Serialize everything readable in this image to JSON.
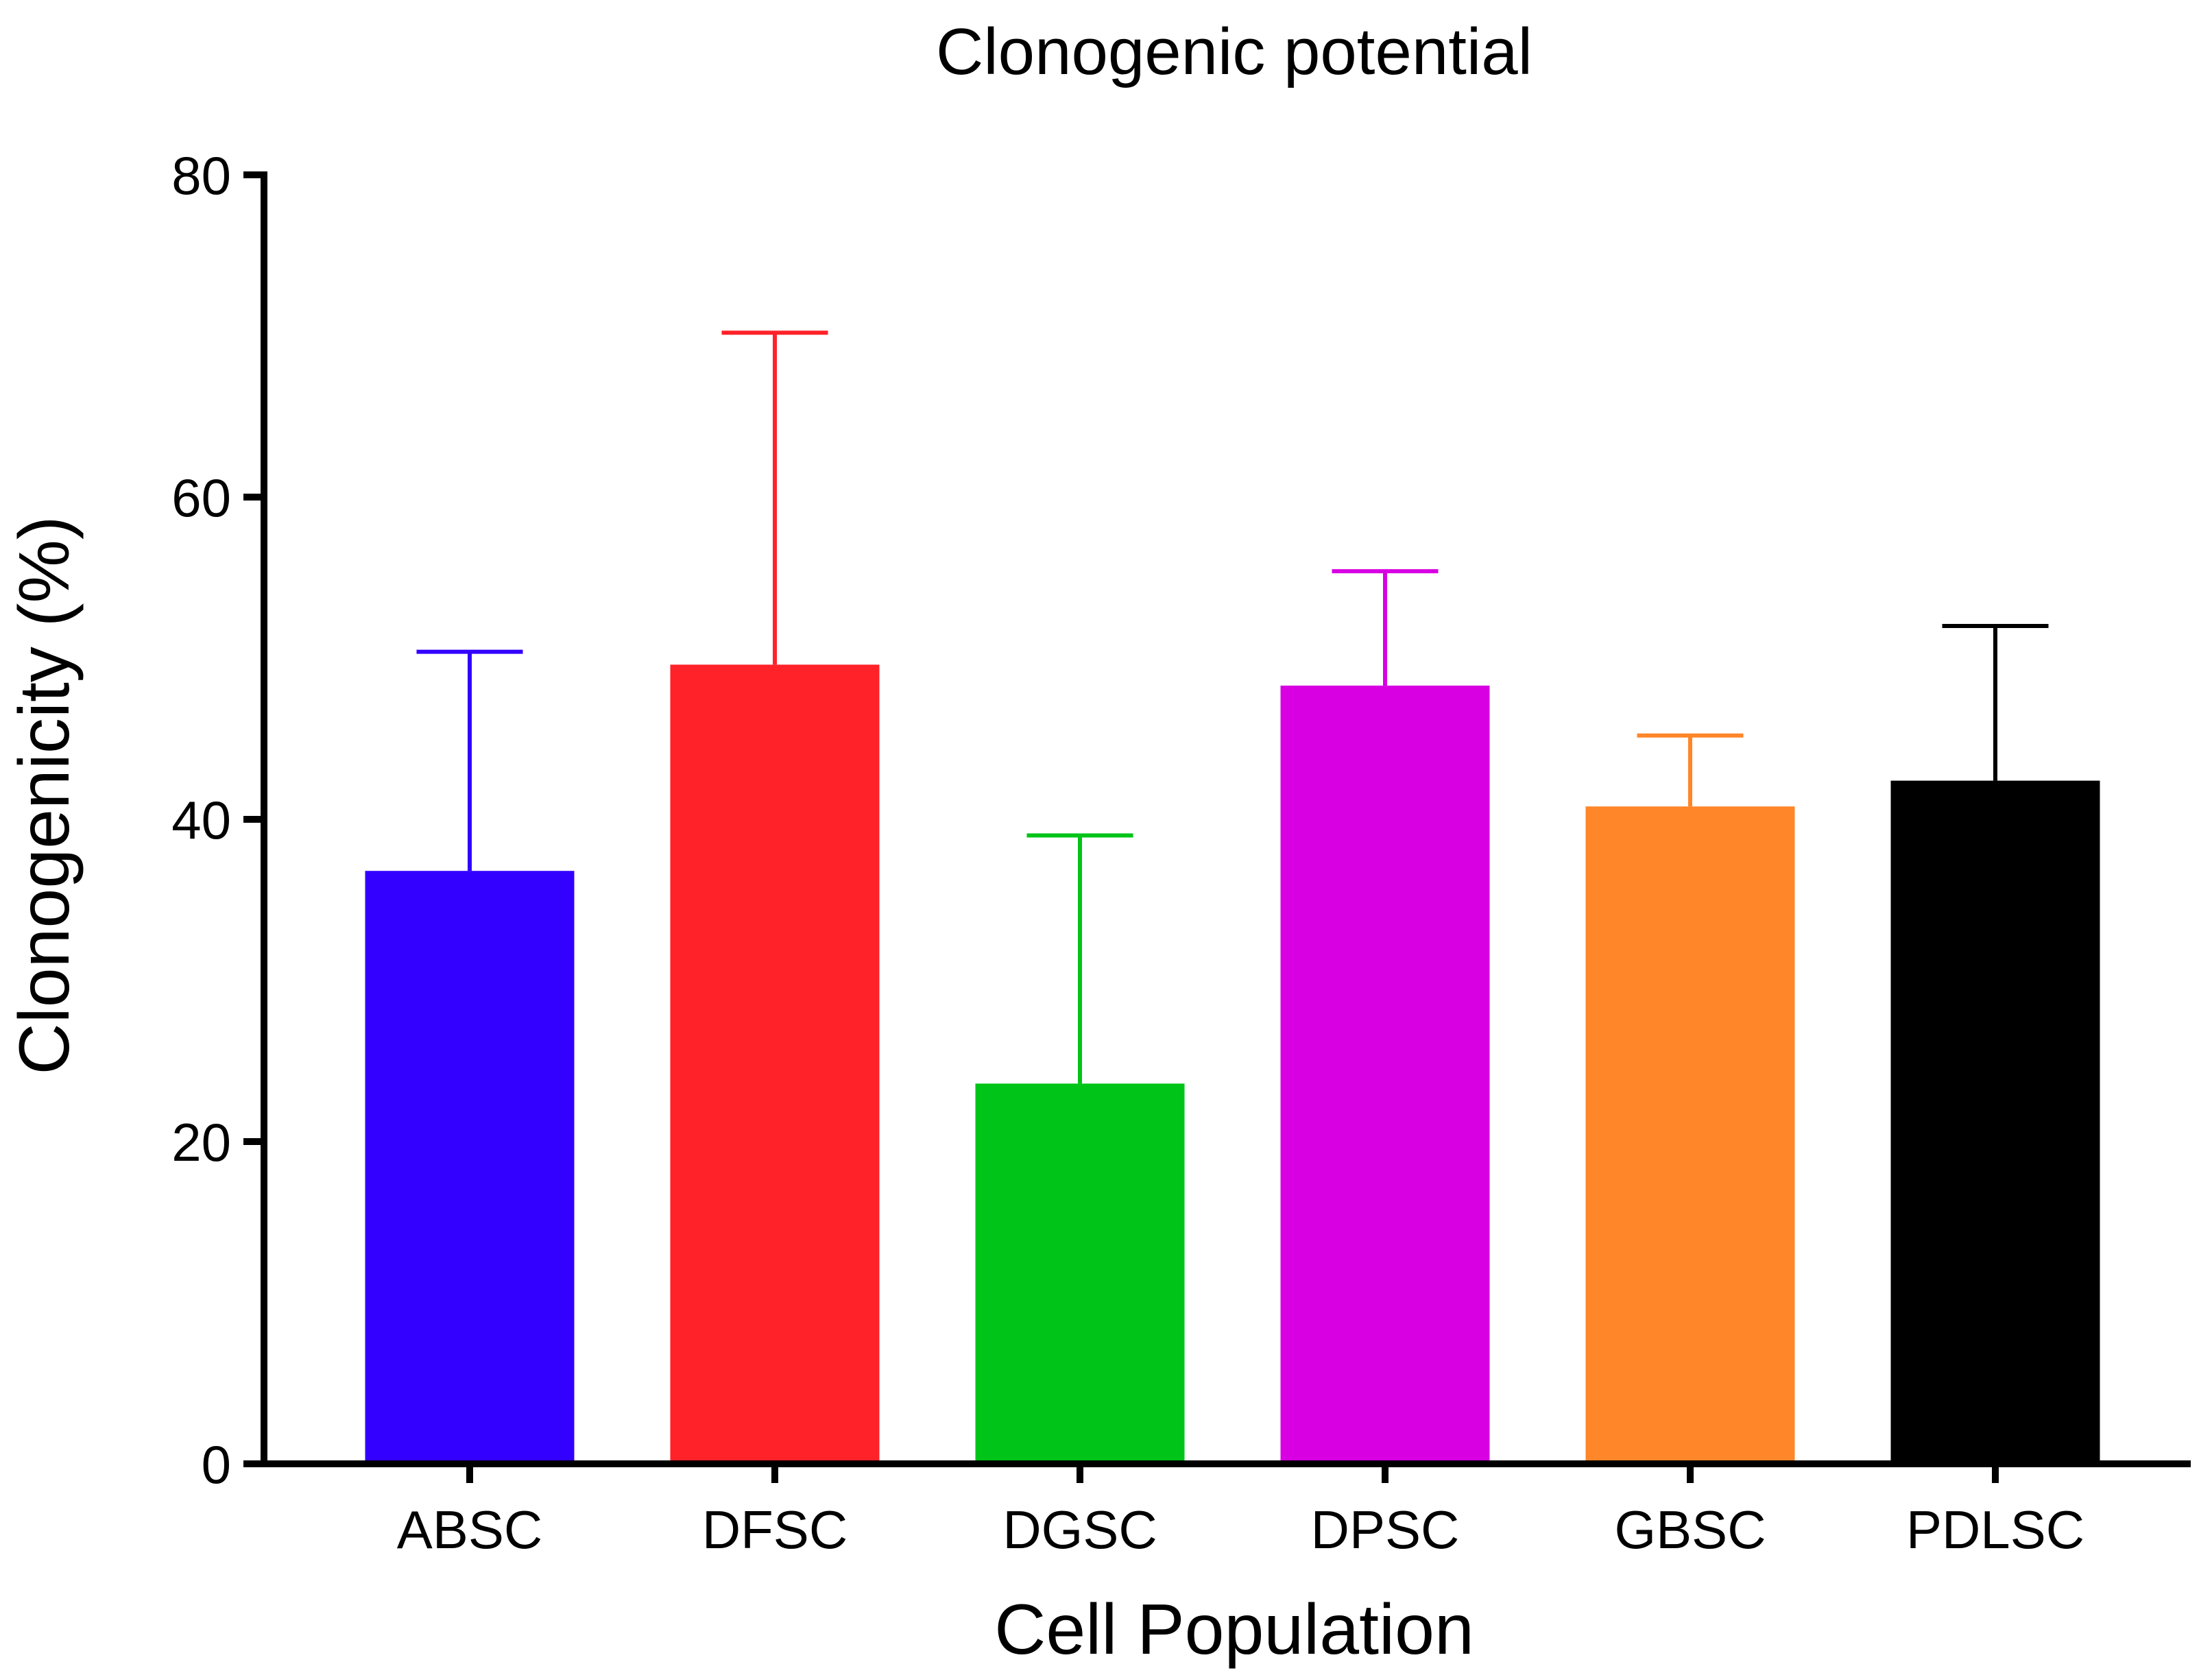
{
  "chart_data": {
    "type": "bar",
    "title": "Clonogenic potential",
    "xlabel": "Cell Population",
    "ylabel": "Clonogenicity (%)",
    "ylim": [
      0,
      80
    ],
    "yticks": [
      "0",
      "20",
      "40",
      "60",
      "80"
    ],
    "categories": [
      "ABSC",
      "DFSC",
      "DGSC",
      "DPSC",
      "GBSC",
      "PDLSC"
    ],
    "values": [
      36.8,
      49.6,
      23.6,
      48.3,
      40.8,
      42.4
    ],
    "error_upper": [
      50.4,
      70.2,
      39.0,
      55.4,
      45.2,
      52.0
    ],
    "colors": [
      "#3300FF",
      "#FF2229",
      "#00C418",
      "#D800E3",
      "#FF8629",
      "#000000"
    ],
    "grid": false
  }
}
